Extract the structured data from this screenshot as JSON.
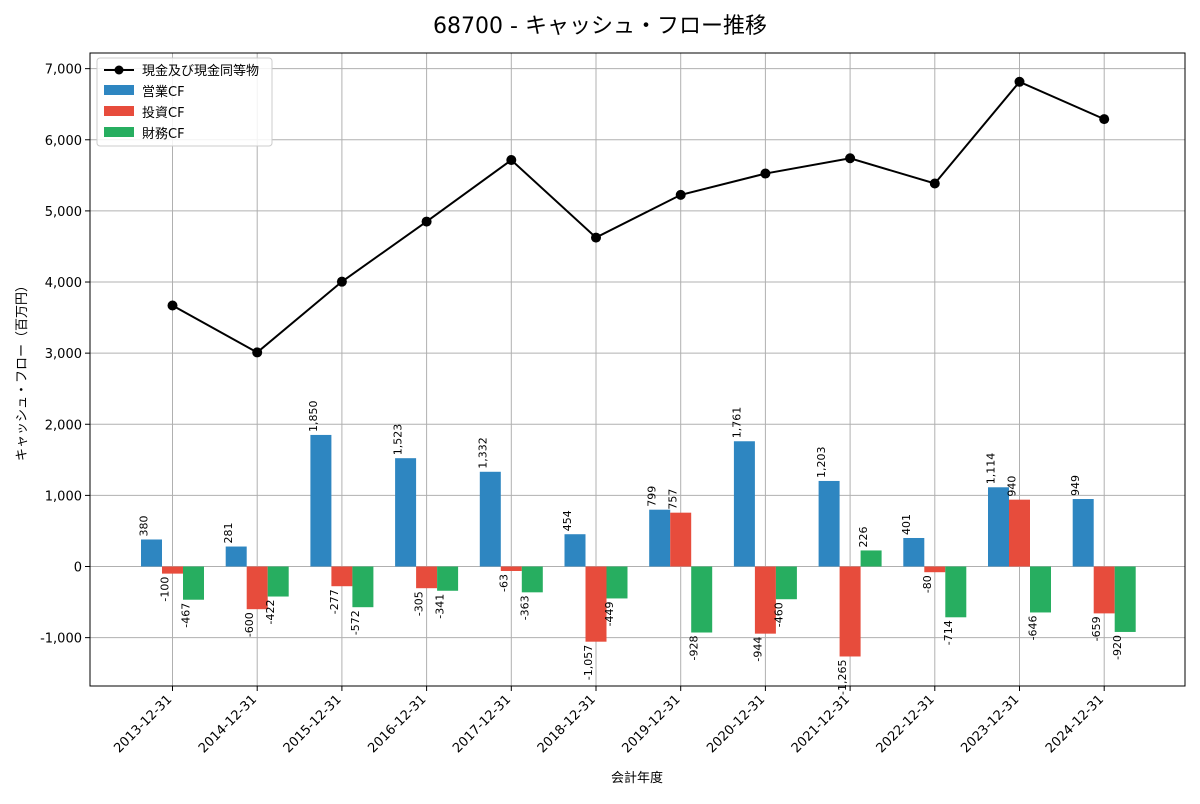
{
  "chart_data": {
    "type": "bar",
    "title": "68700 - キャッシュ・フロー推移",
    "xlabel": "会計年度",
    "ylabel": "キャッシュ・フロー（百万円）",
    "ylim": [
      -1680,
      7220
    ],
    "yticks": [
      -1000,
      0,
      1000,
      2000,
      3000,
      4000,
      5000,
      6000,
      7000
    ],
    "ytick_labels": [
      "-1,000",
      "0",
      "1,000",
      "2,000",
      "3,000",
      "4,000",
      "5,000",
      "6,000",
      "7,000"
    ],
    "grid": true,
    "legend_position": "top-left",
    "categories": [
      "2013-12-31",
      "2014-12-31",
      "2015-12-31",
      "2016-12-31",
      "2017-12-31",
      "2018-12-31",
      "2019-12-31",
      "2020-12-31",
      "2021-12-31",
      "2022-12-31",
      "2023-12-31",
      "2024-12-31"
    ],
    "series": [
      {
        "name": "営業CF",
        "type": "bar",
        "color": "#2e86c1",
        "values": [
          380,
          281,
          1850,
          1523,
          1332,
          454,
          799,
          1761,
          1203,
          401,
          1114,
          949
        ],
        "labels": [
          "380",
          "281",
          "1,850",
          "1,523",
          "1,332",
          "454",
          "799",
          "1,761",
          "1,203",
          "401",
          "1,114",
          "949"
        ]
      },
      {
        "name": "投資CF",
        "type": "bar",
        "color": "#e74c3c",
        "values": [
          -100,
          -600,
          -277,
          -305,
          -63,
          -1057,
          757,
          -944,
          -1265,
          -80,
          940,
          -659
        ],
        "labels": [
          "-100",
          "-600",
          "-277",
          "-305",
          "-63",
          "-1,057",
          "757",
          "-944",
          "-1,265",
          "-80",
          "940",
          "-659"
        ]
      },
      {
        "name": "財務CF",
        "type": "bar",
        "color": "#27ae60",
        "values": [
          -467,
          -422,
          -572,
          -341,
          -363,
          -449,
          -928,
          -460,
          226,
          -714,
          -646,
          -920
        ],
        "labels": [
          "-467",
          "-422",
          "-572",
          "-341",
          "-363",
          "-449",
          "-928",
          "-460",
          "226",
          "-714",
          "-646",
          "-920"
        ]
      },
      {
        "name": "現金及び現金同等物",
        "type": "line",
        "color": "#000000",
        "values": [
          3670,
          3010,
          4005,
          4850,
          5715,
          4625,
          5225,
          5525,
          5740,
          5385,
          6815,
          6290
        ]
      }
    ]
  }
}
